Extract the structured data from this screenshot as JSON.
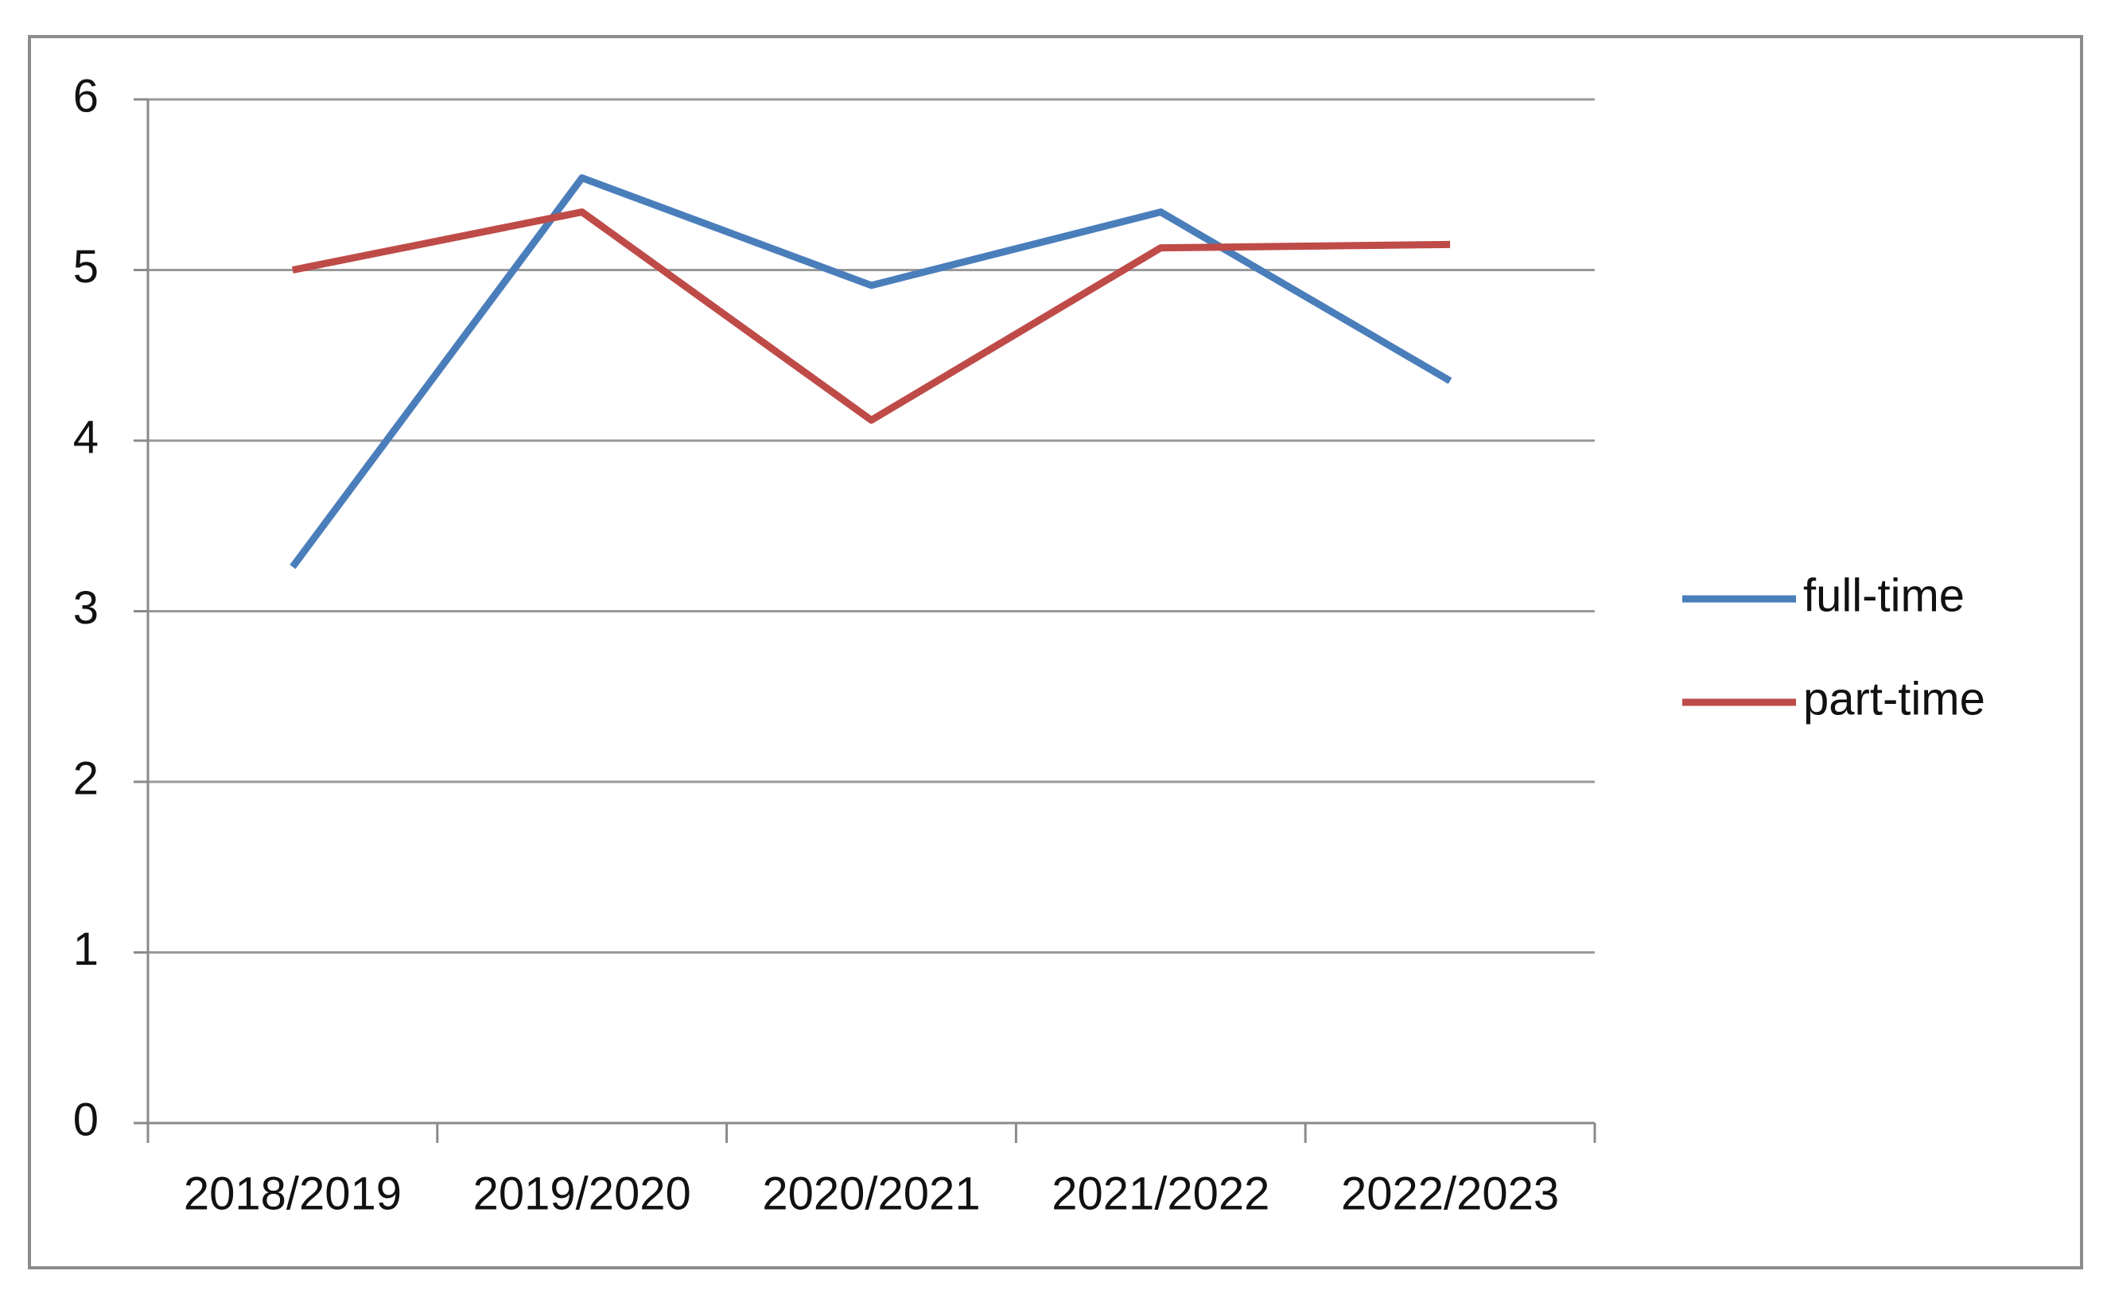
{
  "chart_data": {
    "type": "line",
    "categories": [
      "2018/2019",
      "2019/2020",
      "2020/2021",
      "2021/2022",
      "2022/2023"
    ],
    "series": [
      {
        "name": "full-time",
        "color": "#4a7ebb",
        "values": [
          3.26,
          5.54,
          4.91,
          5.34,
          4.35
        ]
      },
      {
        "name": "part-time",
        "color": "#be4b48",
        "values": [
          5.0,
          5.34,
          4.12,
          5.13,
          5.15
        ]
      }
    ],
    "ylim": [
      0,
      6
    ],
    "yticks": [
      0,
      1,
      2,
      3,
      4,
      5,
      6
    ],
    "grid": true,
    "legend": "right"
  }
}
